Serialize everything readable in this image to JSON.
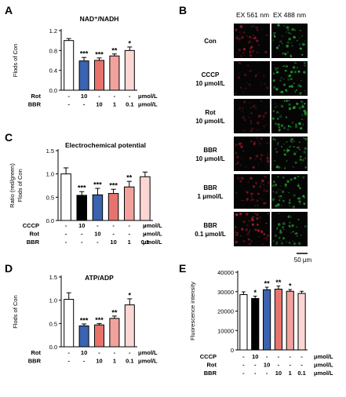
{
  "figure": {
    "panel_letters": [
      "A",
      "B",
      "C",
      "D",
      "E"
    ],
    "scale_bar_label": "50 μm",
    "colors": {
      "black": "#000000",
      "cccp": "#000000",
      "con": "#ffffff",
      "rot": "#3a63b0",
      "bbr_10": "#e8736d",
      "bbr_1": "#f2a29d",
      "bbr_01": "#fbd6d3",
      "green_signal": "#2bbd3a",
      "red_signal": "#c02030"
    }
  },
  "panel_b": {
    "col_headers": [
      "EX 561 nm",
      "EX 488 nm"
    ],
    "rows": [
      {
        "label_line1": "Con",
        "label_line2": ""
      },
      {
        "label_line1": "CCCP",
        "label_line2": "10 μmol/L"
      },
      {
        "label_line1": "Rot",
        "label_line2": "10 μmol/L"
      },
      {
        "label_line1": "BBR",
        "label_line2": "10 μmol/L"
      },
      {
        "label_line1": "BBR",
        "label_line2": "1 μmol/L"
      },
      {
        "label_line1": "BBR",
        "label_line2": "0.1 μmol/L"
      }
    ],
    "red_intensity": [
      0.65,
      0.15,
      0.35,
      0.5,
      0.55,
      0.85
    ],
    "green_intensity": [
      0.75,
      0.9,
      0.85,
      0.8,
      0.8,
      0.6
    ]
  },
  "chart_data": [
    {
      "panel": "A",
      "type": "bar",
      "title": "NAD⁺/NADH",
      "ylabel": "Flods of Con",
      "ylim": [
        0,
        1.2
      ],
      "yticks": [
        "0.0",
        "0.4",
        "0.8",
        "1.2"
      ],
      "categories": [
        "Con",
        "Rot 10",
        "BBR 10",
        "BBR 1",
        "BBR 0.1"
      ],
      "values": [
        1.0,
        0.59,
        0.6,
        0.69,
        0.8
      ],
      "errors": [
        0.04,
        0.07,
        0.05,
        0.04,
        0.07
      ],
      "colors": [
        "#ffffff",
        "#3a63b0",
        "#e8736d",
        "#f2a29d",
        "#fbd6d3"
      ],
      "significance": [
        "",
        "***",
        "***",
        "**",
        "*"
      ],
      "treatment_rows": [
        {
          "name": "Rot",
          "cells": [
            "-",
            "10",
            "-",
            "-",
            "-"
          ],
          "unit": "μmol/L"
        },
        {
          "name": "BBR",
          "cells": [
            "-",
            "-",
            "10",
            "1",
            "0.1"
          ],
          "unit": "μmol/L"
        }
      ]
    },
    {
      "panel": "C",
      "type": "bar",
      "title": "Electrochemical potential",
      "ylabel": "Ratio (red/green) Flods of Con",
      "ylim": [
        0,
        1.5
      ],
      "yticks": [
        "0.0",
        "0.5",
        "1.0",
        "1.5"
      ],
      "categories": [
        "Con",
        "CCCP 10",
        "Rot 10",
        "BBR 10",
        "BBR 1",
        "BBR 0.1"
      ],
      "values": [
        1.0,
        0.54,
        0.55,
        0.58,
        0.72,
        0.94
      ],
      "errors": [
        0.13,
        0.08,
        0.14,
        0.09,
        0.12,
        0.1
      ],
      "colors": [
        "#ffffff",
        "#000000",
        "#3a63b0",
        "#e8736d",
        "#f2a29d",
        "#fbd6d3"
      ],
      "significance": [
        "",
        "***",
        "***",
        "***",
        "**",
        ""
      ],
      "treatment_rows": [
        {
          "name": "CCCP",
          "cells": [
            "-",
            "10",
            "-",
            "-",
            "-",
            "-"
          ],
          "unit": "μmol/L"
        },
        {
          "name": "Rot",
          "cells": [
            "-",
            "-",
            "10",
            "-",
            "-",
            "-"
          ],
          "unit": "μmol/L"
        },
        {
          "name": "BBR",
          "cells": [
            "-",
            "-",
            "-",
            "10",
            "1",
            "0.1"
          ],
          "unit": "μmol/L"
        }
      ]
    },
    {
      "panel": "D",
      "type": "bar",
      "title": "ATP/ADP",
      "ylabel": "Flods of Con",
      "ylim": [
        0,
        1.5
      ],
      "yticks": [
        "0.0",
        "0.5",
        "1.0",
        "1.5"
      ],
      "categories": [
        "Con",
        "Rot 10",
        "BBR 10",
        "BBR 1",
        "BBR 0.1"
      ],
      "values": [
        1.02,
        0.45,
        0.47,
        0.61,
        0.9
      ],
      "errors": [
        0.14,
        0.04,
        0.03,
        0.05,
        0.13
      ],
      "colors": [
        "#ffffff",
        "#3a63b0",
        "#e8736d",
        "#f2a29d",
        "#fbd6d3"
      ],
      "significance": [
        "",
        "***",
        "***",
        "**",
        "*"
      ],
      "treatment_rows": [
        {
          "name": "Rot",
          "cells": [
            "-",
            "10",
            "-",
            "-",
            "-"
          ],
          "unit": "μmol/L"
        },
        {
          "name": "BBR",
          "cells": [
            "-",
            "-",
            "10",
            "1",
            "0.1"
          ],
          "unit": "μmol/L"
        }
      ]
    },
    {
      "panel": "E",
      "type": "bar",
      "title": "",
      "ylabel": "Fluorescence intensity",
      "ylim": [
        0,
        40000
      ],
      "yticks": [
        "0",
        "10000",
        "20000",
        "30000",
        "40000"
      ],
      "categories": [
        "Con",
        "CCCP 10",
        "Rot 10",
        "BBR 10",
        "BBR 1",
        "BBR 0.1"
      ],
      "values": [
        28500,
        26500,
        31000,
        31300,
        30200,
        29100
      ],
      "errors": [
        1400,
        1200,
        1300,
        1600,
        900,
        1100
      ],
      "colors": [
        "#ffffff",
        "#000000",
        "#3a63b0",
        "#e8736d",
        "#f2a29d",
        "#fbd6d3"
      ],
      "significance": [
        "",
        "*",
        "**",
        "**",
        "*",
        ""
      ],
      "treatment_rows": [
        {
          "name": "CCCP",
          "cells": [
            "-",
            "10",
            "-",
            "-",
            "-",
            "-"
          ],
          "unit": "μmol/L"
        },
        {
          "name": "Rot",
          "cells": [
            "-",
            "-",
            "10",
            "-",
            "-",
            "-"
          ],
          "unit": "μmol/L"
        },
        {
          "name": "BBR",
          "cells": [
            "-",
            "-",
            "-",
            "10",
            "1",
            "0.1"
          ],
          "unit": "μmol/L"
        }
      ]
    }
  ]
}
